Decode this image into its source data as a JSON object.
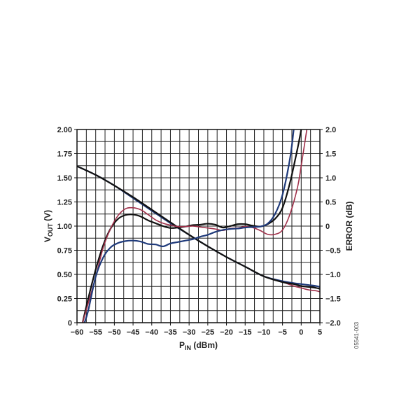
{
  "chart_data": {
    "type": "line",
    "x_label": {
      "main": "P",
      "sub": "IN",
      "rest": " (dBm)"
    },
    "y_left_label": {
      "main": "V",
      "sub": "OUT",
      "rest": " (V)"
    },
    "y_right_label": "ERROR (dB)",
    "figure_id": "05541-003",
    "xlim": [
      -60,
      5
    ],
    "ylim_left": [
      0,
      2.0
    ],
    "ylim_right": [
      -2.0,
      2.0
    ],
    "x_ticks": [
      "−60",
      "−55",
      "−50",
      "−45",
      "−40",
      "−35",
      "−30",
      "−25",
      "−20",
      "−15",
      "−10",
      "−5",
      "0",
      "5"
    ],
    "x_tick_values": [
      -60,
      -55,
      -50,
      -45,
      -40,
      -35,
      -30,
      -25,
      -20,
      -15,
      -10,
      -5,
      0,
      5
    ],
    "y_left_ticks": [
      "0",
      "0.25",
      "0.50",
      "0.75",
      "1.00",
      "1.25",
      "1.50",
      "1.75",
      "2.00"
    ],
    "y_left_tick_values": [
      0,
      0.25,
      0.5,
      0.75,
      1.0,
      1.25,
      1.5,
      1.75,
      2.0
    ],
    "y_right_ticks": [
      "−2.0",
      "−1.5",
      "−1.0",
      "−0.5",
      "0",
      "0.5",
      "1.0",
      "1.5",
      "2.0"
    ],
    "y_right_tick_values": [
      -2.0,
      -1.5,
      -1.0,
      -0.5,
      0,
      0.5,
      1.0,
      1.5,
      2.0
    ],
    "grid": true,
    "series": [
      {
        "axis": "left",
        "color": "#a0304a",
        "x": [
          -60,
          -55,
          -50,
          -45,
          -40,
          -35,
          -30,
          -25,
          -20,
          -15,
          -10,
          -5,
          -2,
          0,
          2,
          4,
          5
        ],
        "y": [
          1.62,
          1.53,
          1.42,
          1.3,
          1.17,
          1.04,
          0.91,
          0.79,
          0.68,
          0.58,
          0.48,
          0.42,
          0.38,
          0.36,
          0.34,
          0.33,
          0.32
        ]
      },
      {
        "axis": "left",
        "color": "#1f3a7a",
        "x": [
          -60,
          -55,
          -50,
          -45,
          -40,
          -35,
          -30,
          -25,
          -20,
          -15,
          -10,
          -5,
          -2,
          0,
          2,
          4,
          5
        ],
        "y": [
          1.62,
          1.53,
          1.42,
          1.29,
          1.16,
          1.03,
          0.91,
          0.79,
          0.68,
          0.58,
          0.48,
          0.43,
          0.41,
          0.4,
          0.39,
          0.38,
          0.37
        ]
      },
      {
        "axis": "left",
        "color": "#111111",
        "x": [
          -60,
          -55,
          -50,
          -45,
          -40,
          -35,
          -30,
          -25,
          -20,
          -15,
          -10,
          -5,
          -2,
          0,
          2,
          4,
          5
        ],
        "y": [
          1.62,
          1.53,
          1.42,
          1.3,
          1.17,
          1.04,
          0.91,
          0.79,
          0.68,
          0.58,
          0.48,
          0.42,
          0.4,
          0.38,
          0.37,
          0.36,
          0.35
        ]
      },
      {
        "axis": "right",
        "color": "#111111",
        "x": [
          -58.5,
          -57,
          -55,
          -53,
          -51,
          -49,
          -47,
          -45,
          -43,
          -41,
          -39,
          -37,
          -35,
          -33,
          -31,
          -29,
          -27,
          -25,
          -23,
          -21,
          -19,
          -17,
          -15,
          -13,
          -11,
          -9,
          -7,
          -5,
          -3,
          -1,
          0
        ],
        "y": [
          -2.0,
          -1.5,
          -0.9,
          -0.4,
          -0.05,
          0.15,
          0.23,
          0.24,
          0.2,
          0.12,
          0.06,
          0.0,
          -0.04,
          -0.03,
          -0.01,
          0.02,
          0.03,
          0.05,
          0.03,
          -0.03,
          0.0,
          0.04,
          0.04,
          0.01,
          -0.01,
          0.04,
          0.15,
          0.38,
          0.9,
          1.6,
          2.0
        ]
      },
      {
        "axis": "right",
        "color": "#a0304a",
        "x": [
          -58.5,
          -57,
          -55,
          -53,
          -51,
          -49,
          -47,
          -45,
          -43,
          -41,
          -39,
          -37,
          -35,
          -33,
          -31,
          -29,
          -27,
          -25,
          -23,
          -21,
          -19,
          -17,
          -15,
          -13,
          -11,
          -9,
          -7,
          -5,
          -3,
          -1,
          0,
          1.5
        ],
        "y": [
          -2.0,
          -1.6,
          -1.05,
          -0.45,
          -0.05,
          0.22,
          0.36,
          0.38,
          0.34,
          0.24,
          0.13,
          0.06,
          0.02,
          -0.01,
          -0.01,
          0.0,
          -0.02,
          -0.04,
          -0.06,
          -0.09,
          -0.05,
          -0.04,
          -0.01,
          -0.03,
          -0.09,
          -0.17,
          -0.17,
          -0.08,
          0.25,
          0.8,
          1.25,
          2.0
        ]
      },
      {
        "axis": "right",
        "color": "#1f3a7a",
        "x": [
          -58,
          -57,
          -55,
          -53,
          -51,
          -49,
          -47,
          -45,
          -43,
          -41,
          -39,
          -37,
          -35,
          -33,
          -31,
          -29,
          -27,
          -25,
          -23,
          -21,
          -19,
          -17,
          -15,
          -13,
          -11,
          -9,
          -7,
          -5,
          -3,
          -2
        ],
        "y": [
          -2.0,
          -1.75,
          -1.05,
          -0.65,
          -0.44,
          -0.35,
          -0.31,
          -0.3,
          -0.32,
          -0.37,
          -0.38,
          -0.42,
          -0.36,
          -0.33,
          -0.3,
          -0.27,
          -0.22,
          -0.18,
          -0.12,
          -0.08,
          -0.06,
          -0.05,
          -0.03,
          -0.02,
          -0.01,
          0.05,
          0.25,
          0.65,
          1.4,
          2.0
        ]
      }
    ]
  }
}
